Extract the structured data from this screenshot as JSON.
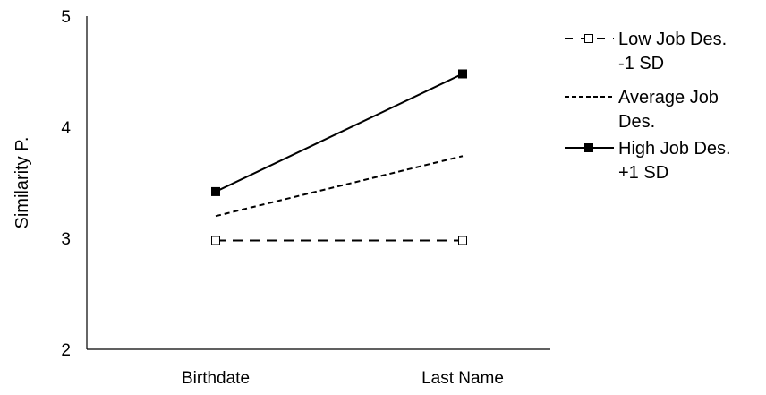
{
  "chart_data": {
    "type": "line",
    "title": "",
    "xlabel": "",
    "ylabel": "Similarity P.",
    "categories": [
      "Birthdate",
      "Last Name"
    ],
    "ylim": [
      2,
      5
    ],
    "yticks": [
      "2",
      "3",
      "4",
      "5"
    ],
    "grid": false,
    "legend_position": "right",
    "series": [
      {
        "name": "Low Job Des. -1 SD",
        "legend_lines": [
          "Low Job Des.",
          "-1 SD"
        ],
        "values": [
          2.98,
          2.98
        ],
        "line_style": "dashed",
        "marker": "open-square",
        "color": "#000000"
      },
      {
        "name": "Average Job Des.",
        "legend_lines": [
          "Average Job",
          "Des."
        ],
        "values": [
          3.2,
          3.74
        ],
        "line_style": "short-dashed",
        "marker": "none",
        "color": "#000000"
      },
      {
        "name": "High Job Des. +1 SD",
        "legend_lines": [
          "High Job Des.",
          "+1 SD"
        ],
        "values": [
          3.42,
          4.48
        ],
        "line_style": "solid",
        "marker": "filled-square",
        "color": "#000000"
      }
    ]
  }
}
